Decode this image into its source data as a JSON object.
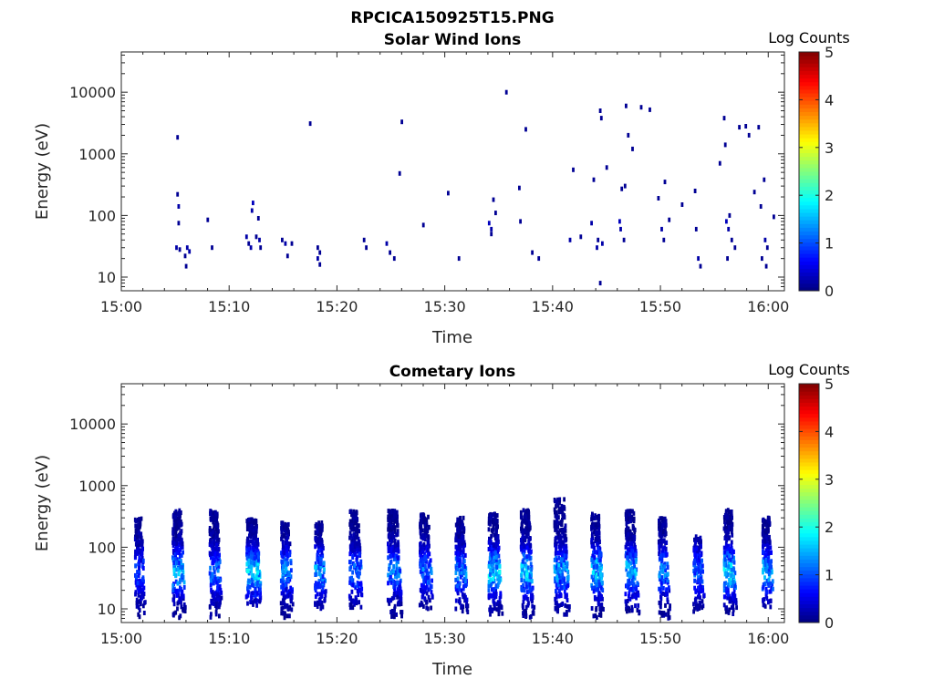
{
  "figure": {
    "title": "RPCICA150925T15.PNG"
  },
  "colors": {
    "colormap": "jet",
    "axis": "#262626",
    "background": "#ffffff"
  },
  "chart_data": [
    {
      "type": "heatmap",
      "title": "Solar Wind Ions",
      "xlabel": "Time",
      "ylabel": "Energy (eV)",
      "x_ticks": [
        "15:00",
        "15:10",
        "15:20",
        "15:30",
        "15:40",
        "15:50",
        "16:00"
      ],
      "x_tick_minutes": [
        0,
        10,
        20,
        30,
        40,
        50,
        60
      ],
      "xlim_minutes": [
        0,
        61.5
      ],
      "y_scale": "log",
      "y_ticks": [
        "10",
        "100",
        "1000",
        "10000"
      ],
      "y_tick_values": [
        10,
        100,
        1000,
        10000
      ],
      "ylim": [
        6,
        45000
      ],
      "colorbar": {
        "label": "Log Counts",
        "ticks": [
          "0",
          "1",
          "2",
          "3",
          "4",
          "5"
        ],
        "range": [
          0,
          5
        ]
      },
      "cells": [
        [
          5.1,
          1850,
          0.1
        ],
        [
          5.1,
          220,
          0.1
        ],
        [
          5.2,
          140,
          0.2
        ],
        [
          5.2,
          75,
          0.1
        ],
        [
          5.0,
          30,
          0.2
        ],
        [
          5.3,
          28,
          0.1
        ],
        [
          5.8,
          22,
          0.1
        ],
        [
          6.0,
          30,
          0.2
        ],
        [
          5.9,
          15,
          0.1
        ],
        [
          6.2,
          26,
          0.2
        ],
        [
          7.9,
          85,
          0.1
        ],
        [
          8.3,
          30,
          0.1
        ],
        [
          11.5,
          45,
          0.2
        ],
        [
          11.7,
          35,
          0.1
        ],
        [
          11.9,
          30,
          0.2
        ],
        [
          12.0,
          120,
          0.2
        ],
        [
          12.1,
          160,
          0.3
        ],
        [
          12.4,
          45,
          0.1
        ],
        [
          12.6,
          90,
          0.1
        ],
        [
          12.8,
          30,
          0.1
        ],
        [
          12.7,
          40,
          0.2
        ],
        [
          14.8,
          40,
          0.1
        ],
        [
          15.1,
          35,
          0.2
        ],
        [
          15.3,
          22,
          0.1
        ],
        [
          15.7,
          35,
          0.1
        ],
        [
          17.4,
          3100,
          0.1
        ],
        [
          18.1,
          20,
          0.2
        ],
        [
          18.3,
          25,
          0.1
        ],
        [
          18.3,
          16,
          0.1
        ],
        [
          18.1,
          30,
          0.1
        ],
        [
          22.4,
          40,
          0.1
        ],
        [
          22.6,
          30,
          0.1
        ],
        [
          25.7,
          480,
          0.1
        ],
        [
          25.9,
          3300,
          0.1
        ],
        [
          24.5,
          35,
          0.2
        ],
        [
          24.8,
          25,
          0.1
        ],
        [
          25.2,
          20,
          0.1
        ],
        [
          27.9,
          70,
          0.1
        ],
        [
          30.2,
          230,
          0.1
        ],
        [
          31.2,
          20,
          0.1
        ],
        [
          34.0,
          75,
          0.3
        ],
        [
          34.2,
          60,
          0.2
        ],
        [
          34.4,
          180,
          0.1
        ],
        [
          34.2,
          50,
          0.1
        ],
        [
          34.6,
          110,
          0.1
        ],
        [
          35.6,
          10000,
          0.1
        ],
        [
          36.8,
          280,
          0.1
        ],
        [
          36.9,
          80,
          0.1
        ],
        [
          37.4,
          2500,
          0.1
        ],
        [
          38.0,
          25,
          0.1
        ],
        [
          38.6,
          20,
          0.1
        ],
        [
          41.5,
          40,
          0.2
        ],
        [
          41.8,
          550,
          0.1
        ],
        [
          42.5,
          45,
          0.1
        ],
        [
          43.5,
          75,
          0.2
        ],
        [
          43.7,
          380,
          0.1
        ],
        [
          44.0,
          30,
          0.2
        ],
        [
          44.1,
          40,
          0.1
        ],
        [
          44.3,
          5000,
          0.1
        ],
        [
          44.4,
          3800,
          0.1
        ],
        [
          44.5,
          35,
          0.2
        ],
        [
          44.3,
          8,
          0.1
        ],
        [
          44.9,
          600,
          0.1
        ],
        [
          46.1,
          80,
          0.3
        ],
        [
          46.2,
          60,
          0.2
        ],
        [
          46.5,
          40,
          0.1
        ],
        [
          46.3,
          270,
          0.1
        ],
        [
          46.6,
          300,
          0.1
        ],
        [
          46.7,
          6000,
          0.1
        ],
        [
          46.9,
          2000,
          0.1
        ],
        [
          47.3,
          1200,
          0.1
        ],
        [
          48.1,
          5700,
          0.1
        ],
        [
          48.9,
          5200,
          0.1
        ],
        [
          49.7,
          190,
          0.1
        ],
        [
          50.0,
          60,
          0.2
        ],
        [
          50.2,
          40,
          0.1
        ],
        [
          50.3,
          350,
          0.1
        ],
        [
          50.7,
          85,
          0.1
        ],
        [
          51.9,
          150,
          0.1
        ],
        [
          53.1,
          250,
          0.1
        ],
        [
          53.2,
          60,
          0.1
        ],
        [
          53.4,
          20,
          0.2
        ],
        [
          53.6,
          15,
          0.1
        ],
        [
          55.4,
          700,
          0.1
        ],
        [
          55.8,
          3800,
          0.1
        ],
        [
          55.9,
          1400,
          0.1
        ],
        [
          56.0,
          80,
          0.3
        ],
        [
          56.2,
          60,
          0.2
        ],
        [
          56.3,
          100,
          0.1
        ],
        [
          56.5,
          40,
          0.1
        ],
        [
          56.8,
          30,
          0.1
        ],
        [
          56.1,
          20,
          0.1
        ],
        [
          57.2,
          2700,
          0.1
        ],
        [
          57.8,
          2800,
          0.1
        ],
        [
          58.1,
          2000,
          0.1
        ],
        [
          58.6,
          240,
          0.1
        ],
        [
          59.0,
          2700,
          0.1
        ],
        [
          59.2,
          140,
          0.1
        ],
        [
          59.5,
          380,
          0.1
        ],
        [
          59.6,
          40,
          0.2
        ],
        [
          59.8,
          30,
          0.1
        ],
        [
          59.3,
          20,
          0.1
        ],
        [
          60.4,
          95,
          0.1
        ],
        [
          59.7,
          15,
          0.1
        ]
      ]
    },
    {
      "type": "heatmap",
      "title": "Cometary Ions",
      "xlabel": "Time",
      "ylabel": "Energy (eV)",
      "x_ticks": [
        "15:00",
        "15:10",
        "15:20",
        "15:30",
        "15:40",
        "15:50",
        "16:00"
      ],
      "x_tick_minutes": [
        0,
        10,
        20,
        30,
        40,
        50,
        60
      ],
      "xlim_minutes": [
        0,
        61.5
      ],
      "y_scale": "log",
      "y_ticks": [
        "10",
        "100",
        "1000",
        "10000"
      ],
      "y_tick_values": [
        10,
        100,
        1000,
        10000
      ],
      "ylim": [
        6,
        45000
      ],
      "colorbar": {
        "label": "Log Counts",
        "ticks": [
          "0",
          "1",
          "2",
          "3",
          "4",
          "5"
        ],
        "range": [
          0,
          5
        ]
      },
      "bursts": [
        {
          "t": 1.7,
          "w": 1.0,
          "lo": 7,
          "hi": 300,
          "peak": 0.9,
          "n": 55
        },
        {
          "t": 5.3,
          "w": 1.3,
          "lo": 7,
          "hi": 400,
          "peak": 1.6,
          "n": 75
        },
        {
          "t": 8.7,
          "w": 1.2,
          "lo": 7,
          "hi": 400,
          "peak": 1.2,
          "n": 70
        },
        {
          "t": 12.2,
          "w": 1.5,
          "lo": 11,
          "hi": 300,
          "peak": 1.9,
          "n": 85
        },
        {
          "t": 15.3,
          "w": 1.2,
          "lo": 7,
          "hi": 250,
          "peak": 1.3,
          "n": 60
        },
        {
          "t": 18.4,
          "w": 1.1,
          "lo": 10,
          "hi": 250,
          "peak": 1.4,
          "n": 55
        },
        {
          "t": 21.7,
          "w": 1.3,
          "lo": 10,
          "hi": 400,
          "peak": 1.2,
          "n": 65
        },
        {
          "t": 25.3,
          "w": 1.4,
          "lo": 7,
          "hi": 400,
          "peak": 1.3,
          "n": 75
        },
        {
          "t": 28.2,
          "w": 1.3,
          "lo": 10,
          "hi": 350,
          "peak": 1.2,
          "n": 65
        },
        {
          "t": 31.5,
          "w": 1.2,
          "lo": 8,
          "hi": 300,
          "peak": 1.3,
          "n": 60
        },
        {
          "t": 34.6,
          "w": 1.3,
          "lo": 8,
          "hi": 350,
          "peak": 1.8,
          "n": 70
        },
        {
          "t": 37.6,
          "w": 1.3,
          "lo": 7,
          "hi": 400,
          "peak": 1.7,
          "n": 75
        },
        {
          "t": 40.8,
          "w": 1.5,
          "lo": 8,
          "hi": 600,
          "peak": 1.5,
          "n": 90
        },
        {
          "t": 44.1,
          "w": 1.2,
          "lo": 7,
          "hi": 350,
          "peak": 1.8,
          "n": 70
        },
        {
          "t": 47.3,
          "w": 1.3,
          "lo": 8,
          "hi": 400,
          "peak": 1.6,
          "n": 70
        },
        {
          "t": 50.3,
          "w": 1.1,
          "lo": 7,
          "hi": 300,
          "peak": 1.3,
          "n": 55
        },
        {
          "t": 53.5,
          "w": 1.1,
          "lo": 9,
          "hi": 150,
          "peak": 1.1,
          "n": 45
        },
        {
          "t": 56.4,
          "w": 1.2,
          "lo": 8,
          "hi": 400,
          "peak": 1.9,
          "n": 70
        },
        {
          "t": 59.9,
          "w": 1.1,
          "lo": 10,
          "hi": 300,
          "peak": 1.5,
          "n": 55
        }
      ]
    }
  ]
}
